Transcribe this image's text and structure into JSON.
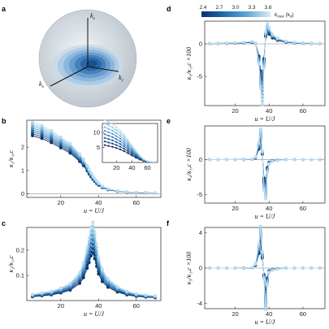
{
  "panel_letters": {
    "a": "a",
    "b": "b",
    "c": "c",
    "d": "d",
    "e": "e",
    "f": "f"
  },
  "sphere": {
    "kz": "k",
    "kz_sub": "z",
    "kx": "k",
    "kx_sub": "x",
    "ky": "k",
    "ky_sub": "y"
  },
  "colorbar": {
    "ticks": [
      "2.4",
      "2.7",
      "3.0",
      "3.3",
      "3.6"
    ],
    "label": "k",
    "label_sub": "max",
    "label_unit": "(k",
    "label_unit_sub": "d",
    "label_unit_close": ")",
    "colors": [
      "#0b2a5a",
      "#123f7a",
      "#1c5a99",
      "#2f77b8",
      "#4d93cc",
      "#70aedb",
      "#97c7e6",
      "#bcdcef"
    ]
  },
  "chart_data": [
    {
      "id": "b",
      "type": "line",
      "ylabel": "κ₁/κ₁,c",
      "xlabel": "u = U/J",
      "xlim": [
        2,
        73
      ],
      "ylim": [
        -0.15,
        3.15
      ],
      "yticks": [
        0,
        1,
        2
      ],
      "xticks": [
        20,
        40,
        60
      ],
      "x": [
        5,
        10,
        15,
        20,
        25,
        30,
        32,
        34,
        35,
        36,
        37,
        38,
        39,
        40,
        42,
        45,
        50,
        55,
        60,
        65,
        70
      ],
      "series_base": [
        2.78,
        2.65,
        2.45,
        2.2,
        1.95,
        1.55,
        1.35,
        1.1,
        0.95,
        0.82,
        0.7,
        0.6,
        0.5,
        0.42,
        0.3,
        0.2,
        0.12,
        0.08,
        0.06,
        0.05,
        0.04
      ],
      "inset": {
        "xlim": [
          2,
          73
        ],
        "ylim": [
          0,
          13
        ],
        "yticks": [
          5,
          10
        ],
        "xticks": [
          20,
          40,
          60
        ],
        "x": [
          5,
          10,
          15,
          20,
          25,
          30,
          35,
          40,
          45,
          50,
          55,
          60,
          65,
          70
        ],
        "series_base": [
          10,
          9.5,
          9,
          8.3,
          7.5,
          6.5,
          5.3,
          4,
          2.8,
          1.7,
          0.8,
          0.3,
          0.15,
          0.1
        ]
      }
    },
    {
      "id": "c",
      "type": "line",
      "ylabel": "κ₂/κ₁,c",
      "xlabel": "u = U/J",
      "xlim": [
        2,
        73
      ],
      "ylim": [
        0,
        0.29
      ],
      "yticks": [
        0.1,
        0.2
      ],
      "xticks": [
        20,
        40,
        60
      ],
      "x": [
        5,
        10,
        15,
        20,
        25,
        30,
        32,
        34,
        35,
        36,
        37,
        38,
        39,
        40,
        42,
        45,
        50,
        55,
        60,
        65,
        70
      ],
      "series_base": [
        0.02,
        0.025,
        0.03,
        0.04,
        0.055,
        0.09,
        0.12,
        0.17,
        0.2,
        0.235,
        0.25,
        0.22,
        0.18,
        0.14,
        0.1,
        0.07,
        0.045,
        0.03,
        0.022,
        0.018,
        0.015
      ]
    },
    {
      "id": "d",
      "type": "line",
      "ylabel": "κ₃/κ₁,c ×100",
      "xlabel": "u = U/J",
      "xlim": [
        2,
        73
      ],
      "ylim": [
        -9.5,
        3.5
      ],
      "yticks": [
        -5,
        0
      ],
      "xticks": [
        20,
        40,
        60
      ],
      "x": [
        5,
        10,
        15,
        20,
        25,
        30,
        32,
        34,
        35,
        36,
        37,
        38,
        39,
        40,
        42,
        45,
        50,
        55,
        60,
        65,
        70
      ],
      "series_base": [
        0.05,
        0.08,
        0.1,
        0.15,
        0.2,
        0.3,
        0.1,
        -2.5,
        -5.5,
        -7.5,
        -3,
        1.5,
        2.5,
        2,
        1.2,
        0.7,
        0.35,
        0.2,
        0.12,
        0.08,
        0.05
      ]
    },
    {
      "id": "e",
      "type": "line",
      "ylabel": "κ₄/κ₁,c ×100",
      "xlabel": "u = U/J",
      "xlim": [
        2,
        73
      ],
      "ylim": [
        -6.2,
        4.8
      ],
      "yticks": [
        -5,
        0
      ],
      "xticks": [
        20,
        40,
        60
      ],
      "x": [
        5,
        10,
        15,
        20,
        25,
        30,
        32,
        34,
        35,
        36,
        37,
        38,
        39,
        40,
        42,
        45,
        50,
        55,
        60,
        65,
        70
      ],
      "series_base": [
        0,
        0,
        0,
        0,
        0.02,
        0.05,
        0.3,
        2,
        3.5,
        1,
        -3.5,
        -4.5,
        -1.5,
        -0.5,
        -0.2,
        -0.1,
        0,
        0,
        0,
        0,
        0
      ]
    },
    {
      "id": "f",
      "type": "line",
      "ylabel": "κ₅/κ₁,c ×100",
      "xlabel": "u = U/J",
      "xlim": [
        2,
        73
      ],
      "ylim": [
        -4.6,
        4.6
      ],
      "yticks": [
        -4,
        0,
        4
      ],
      "xticks": [
        20,
        40,
        60
      ],
      "x": [
        5,
        10,
        15,
        20,
        25,
        30,
        32,
        34,
        35,
        36,
        37,
        38,
        39,
        40,
        42,
        45,
        50,
        55,
        60,
        65,
        70
      ],
      "series_base": [
        0,
        0,
        0,
        0,
        0.02,
        0.05,
        0.4,
        2.2,
        3.8,
        1.5,
        -1,
        -3.8,
        -1.5,
        -0.4,
        -0.2,
        -0.1,
        0,
        0,
        0,
        0,
        0
      ]
    }
  ]
}
